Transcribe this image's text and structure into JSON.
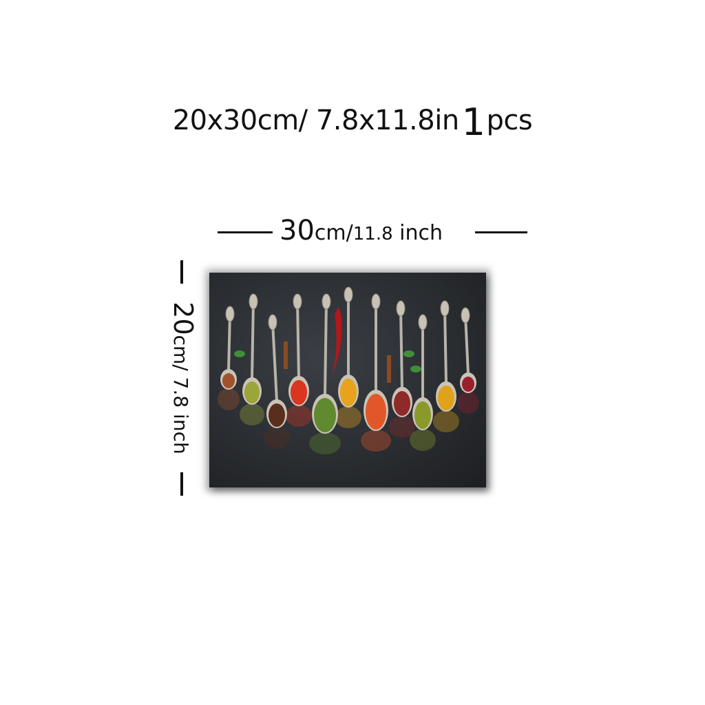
{
  "header": {
    "size_text": "20x30cm/ 7.8x11.8in",
    "quantity_number": "1",
    "quantity_unit": "pcs"
  },
  "width_dimension": {
    "value": "30",
    "unit_text": "cm/",
    "inch_value": "11.8",
    "inch_unit": " inch"
  },
  "height_dimension": {
    "value": "20",
    "unit_text": "cm/ 7.8 inch"
  },
  "print_image": {
    "subject": "spoons-with-spices-on-dark-background",
    "spice_colors": [
      "#a0522d",
      "#9aa63a",
      "#5a2e1c",
      "#d9351f",
      "#5f8a2f",
      "#e8a21c",
      "#e2572a",
      "#8e2a2a",
      "#8a9a2a",
      "#e0a21a",
      "#9a1f2f"
    ]
  }
}
